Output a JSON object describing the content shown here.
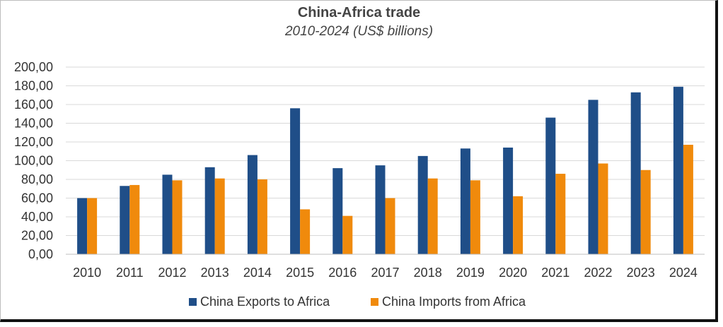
{
  "colors": {
    "exports": "#1f4e88",
    "imports": "#f08a0c",
    "grid": "#d9d9d9"
  },
  "chart_data": {
    "type": "bar",
    "title": "China-Africa trade",
    "subtitle": "2010-2024 (US$ billions)",
    "categories": [
      "2010",
      "2011",
      "2012",
      "2013",
      "2014",
      "2015",
      "2016",
      "2017",
      "2018",
      "2019",
      "2020",
      "2021",
      "2022",
      "2023",
      "2024"
    ],
    "series": [
      {
        "name": "China Exports to Africa",
        "values": [
          60,
          73,
          85,
          93,
          106,
          156,
          92,
          95,
          105,
          113,
          114,
          146,
          165,
          173,
          179
        ]
      },
      {
        "name": "China Imports from Africa",
        "values": [
          60,
          74,
          79,
          81,
          80,
          48,
          41,
          60,
          81,
          79,
          62,
          86,
          97,
          90,
          117
        ]
      }
    ],
    "ylim": [
      0,
      200
    ],
    "yticks": [
      "0,00",
      "20,00",
      "40,00",
      "60,00",
      "80,00",
      "100,00",
      "120,00",
      "140,00",
      "160,00",
      "180,00",
      "200,00"
    ],
    "grid": true,
    "legend": "bottom"
  }
}
